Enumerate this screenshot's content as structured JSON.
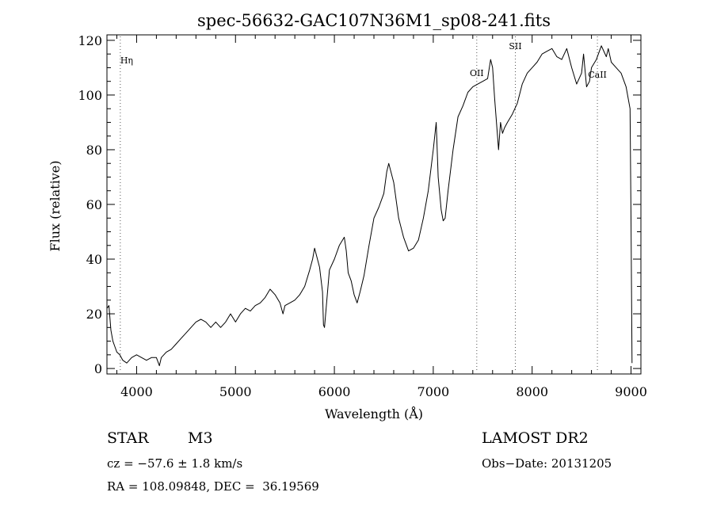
{
  "chart_data": {
    "type": "line",
    "title": "spec-56632-GAC107N36M1_sp08-241.fits",
    "xlabel": "Wavelength (Å)",
    "ylabel": "Flux (relative)",
    "xlim": [
      3700,
      9100
    ],
    "ylim": [
      -2,
      122
    ],
    "x_ticks": [
      4000,
      5000,
      6000,
      7000,
      8000,
      9000
    ],
    "y_ticks": [
      0,
      20,
      40,
      60,
      80,
      100,
      120
    ],
    "x_tick_labels": [
      "4000",
      "5000",
      "6000",
      "7000",
      "8000",
      "9000"
    ],
    "y_tick_labels": [
      "0",
      "20",
      "40",
      "60",
      "80",
      "100",
      "120"
    ],
    "grid": false,
    "line_color": "#000000",
    "series": [
      {
        "x": [
          3700,
          3720,
          3740,
          3760,
          3780,
          3800,
          3830,
          3860,
          3900,
          3950,
          4000,
          4050,
          4100,
          4150,
          4200,
          4230,
          4250,
          4300,
          4350,
          4400,
          4450,
          4500,
          4550,
          4600,
          4650,
          4700,
          4750,
          4800,
          4850,
          4900,
          4950,
          5000,
          5050,
          5100,
          5150,
          5200,
          5250,
          5300,
          5350,
          5400,
          5450,
          5480,
          5500,
          5550,
          5600,
          5650,
          5700,
          5750,
          5780,
          5800,
          5850,
          5880,
          5890,
          5900,
          5950,
          6000,
          6050,
          6100,
          6120,
          6140,
          6170,
          6200,
          6230,
          6260,
          6300,
          6350,
          6400,
          6450,
          6500,
          6530,
          6550,
          6600,
          6650,
          6700,
          6750,
          6800,
          6850,
          6900,
          6950,
          7000,
          7030,
          7050,
          7080,
          7100,
          7120,
          7150,
          7200,
          7250,
          7300,
          7350,
          7400,
          7450,
          7500,
          7550,
          7580,
          7600,
          7620,
          7650,
          7660,
          7680,
          7700,
          7720,
          7750,
          7800,
          7850,
          7900,
          7950,
          8000,
          8050,
          8100,
          8150,
          8200,
          8250,
          8300,
          8350,
          8400,
          8450,
          8500,
          8520,
          8550,
          8580,
          8600,
          8650,
          8700,
          8750,
          8770,
          8800,
          8850,
          8900,
          8950,
          8990,
          9000,
          9010
        ],
        "y": [
          22,
          23,
          14,
          10,
          8,
          6,
          5,
          3,
          2,
          4,
          5,
          4,
          3,
          4,
          4,
          1,
          4,
          6,
          7,
          9,
          11,
          13,
          15,
          17,
          18,
          17,
          15,
          17,
          15,
          17,
          20,
          17,
          20,
          22,
          21,
          23,
          24,
          26,
          29,
          27,
          24,
          20,
          23,
          24,
          25,
          27,
          30,
          36,
          40,
          44,
          37,
          28,
          16,
          15,
          36,
          40,
          45,
          48,
          43,
          35,
          32,
          27,
          24,
          28,
          34,
          45,
          55,
          59,
          64,
          72,
          75,
          68,
          55,
          48,
          43,
          44,
          47,
          55,
          65,
          80,
          90,
          70,
          58,
          54,
          55,
          65,
          80,
          92,
          96,
          101,
          103,
          104,
          105,
          106,
          113,
          110,
          99,
          85,
          80,
          90,
          86,
          88,
          90,
          93,
          97,
          104,
          108,
          110,
          112,
          115,
          116,
          117,
          114,
          113,
          117,
          110,
          104,
          108,
          115,
          103,
          105,
          110,
          113,
          118,
          114,
          117,
          112,
          110,
          108,
          103,
          95,
          55,
          2
        ]
      }
    ],
    "annotations": [
      {
        "text": "Hη",
        "x": 3835
      },
      {
        "text": "OII",
        "x": 7440
      },
      {
        "text": "SII",
        "x": 7830
      },
      {
        "text": "CaII",
        "x": 8660
      }
    ]
  },
  "info": {
    "class": "STAR",
    "subclass": "M3",
    "survey": "LAMOST DR2",
    "cz": "cz = −57.6 ± 1.8 km/s",
    "obs_date": "Obs−Date: 20131205",
    "coords": "RA = 108.09848, DEC =  36.19569"
  }
}
